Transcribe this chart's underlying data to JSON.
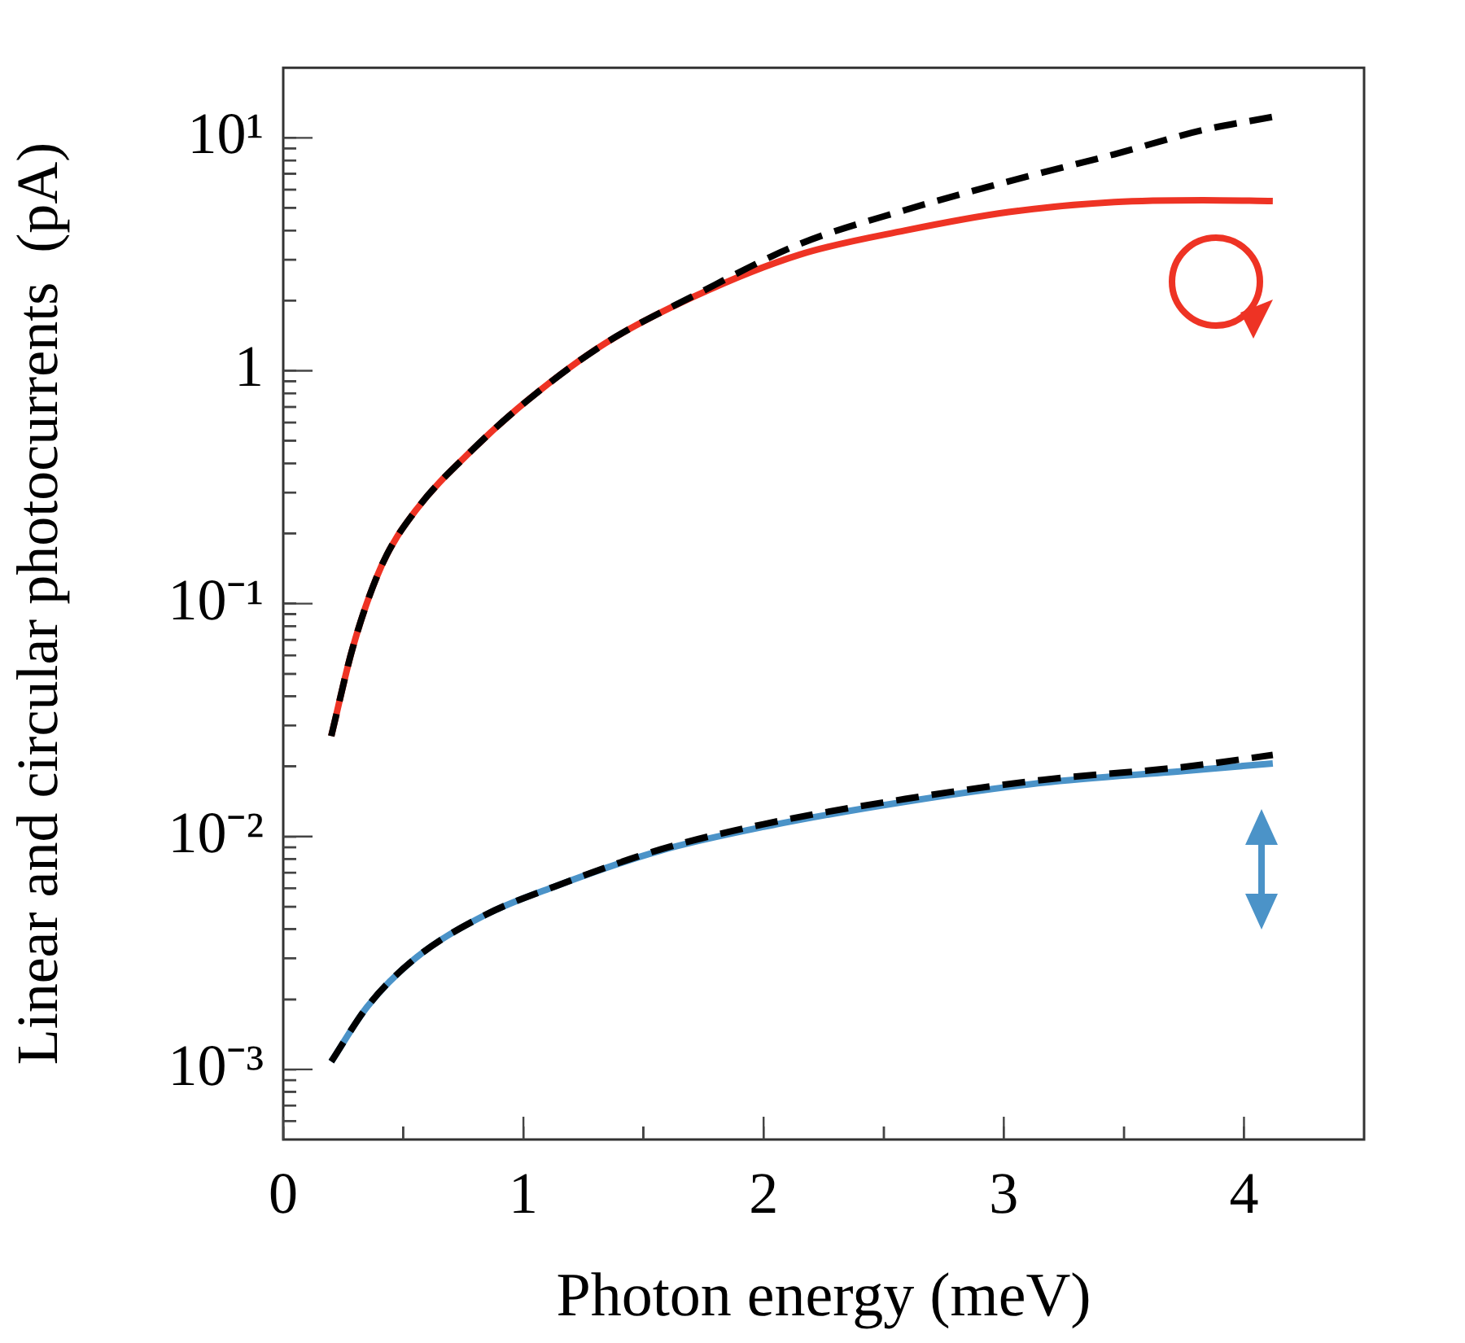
{
  "chart_data": {
    "type": "line",
    "xlabel": "Photon energy (meV)",
    "ylabel": "Linear and circular photocurrents  (pA)",
    "log": "y",
    "grid": false,
    "legend": false,
    "marker": "none",
    "xlim": [
      0,
      4.5
    ],
    "ylim": [
      0.0005,
      20
    ],
    "xticks": [
      0,
      {
        "value": 0.5,
        "label": null
      },
      1,
      {
        "value": 1.5,
        "label": null
      },
      2,
      {
        "value": 2.5,
        "label": null
      },
      3,
      {
        "value": 3.5,
        "label": null
      },
      4
    ],
    "yticks": [
      {
        "value": 0.0006,
        "label": null
      },
      {
        "value": 0.0007,
        "label": null
      },
      {
        "value": 0.0008,
        "label": null
      },
      {
        "value": 0.0009,
        "label": null
      },
      {
        "value": 0.001,
        "label": "10⁻³"
      },
      {
        "value": 0.002,
        "label": null
      },
      {
        "value": 0.003,
        "label": null
      },
      {
        "value": 0.004,
        "label": null
      },
      {
        "value": 0.005,
        "label": null
      },
      {
        "value": 0.006,
        "label": null
      },
      {
        "value": 0.007,
        "label": null
      },
      {
        "value": 0.008,
        "label": null
      },
      {
        "value": 0.009,
        "label": null
      },
      {
        "value": 0.01,
        "label": "10⁻²"
      },
      {
        "value": 0.02,
        "label": null
      },
      {
        "value": 0.03,
        "label": null
      },
      {
        "value": 0.04,
        "label": null
      },
      {
        "value": 0.05,
        "label": null
      },
      {
        "value": 0.06,
        "label": null
      },
      {
        "value": 0.07,
        "label": null
      },
      {
        "value": 0.08,
        "label": null
      },
      {
        "value": 0.09,
        "label": null
      },
      {
        "value": 0.1,
        "label": "10⁻¹"
      },
      {
        "value": 0.2,
        "label": null
      },
      {
        "value": 0.3,
        "label": null
      },
      {
        "value": 0.4,
        "label": null
      },
      {
        "value": 0.5,
        "label": null
      },
      {
        "value": 0.6,
        "label": null
      },
      {
        "value": 0.7,
        "label": null
      },
      {
        "value": 0.8,
        "label": null
      },
      {
        "value": 0.9,
        "label": null
      },
      {
        "value": 1,
        "label": "1"
      },
      {
        "value": 2,
        "label": null
      },
      {
        "value": 3,
        "label": null
      },
      {
        "value": 4,
        "label": null
      },
      {
        "value": 5,
        "label": null
      },
      {
        "value": 6,
        "label": null
      },
      {
        "value": 7,
        "label": null
      },
      {
        "value": 8,
        "label": null
      },
      {
        "value": 9,
        "label": null
      },
      {
        "value": 10,
        "label": "10¹"
      }
    ],
    "series": [
      {
        "color": "#ee3324",
        "line_style": "solid",
        "x": [
          0.2,
          0.29,
          0.41,
          0.55,
          0.79,
          1.02,
          1.34,
          1.71,
          2.15,
          2.59,
          3.02,
          3.46,
          3.83,
          4.12
        ],
        "values": [
          0.027,
          0.065,
          0.146,
          0.25,
          0.46,
          0.75,
          1.31,
          2.08,
          3.15,
          4.0,
          4.8,
          5.3,
          5.4,
          5.35
        ]
      },
      {
        "color": "#000000",
        "line_style": "dashed",
        "x": [
          0.2,
          0.29,
          0.41,
          0.55,
          0.79,
          1.02,
          1.34,
          1.71,
          2.15,
          2.59,
          3.02,
          3.46,
          3.83,
          4.12
        ],
        "values": [
          0.027,
          0.065,
          0.146,
          0.25,
          0.46,
          0.75,
          1.31,
          2.1,
          3.5,
          4.9,
          6.5,
          8.5,
          10.8,
          12.3
        ]
      },
      {
        "color": "#4b93c8",
        "line_style": "solid",
        "x": [
          0.2,
          0.35,
          0.55,
          0.84,
          1.13,
          1.57,
          2.0,
          2.59,
          3.16,
          3.75,
          4.12
        ],
        "values": [
          0.00108,
          0.00186,
          0.003,
          0.0046,
          0.0061,
          0.0087,
          0.011,
          0.0141,
          0.017,
          0.0191,
          0.0206
        ]
      },
      {
        "color": "#000000",
        "line_style": "dashed",
        "x": [
          0.2,
          0.35,
          0.55,
          0.84,
          1.13,
          1.57,
          2.0,
          2.59,
          3.16,
          3.75,
          4.12
        ],
        "values": [
          0.00108,
          0.00186,
          0.003,
          0.0046,
          0.0061,
          0.0088,
          0.0113,
          0.0145,
          0.0175,
          0.0199,
          0.0224
        ]
      }
    ]
  }
}
